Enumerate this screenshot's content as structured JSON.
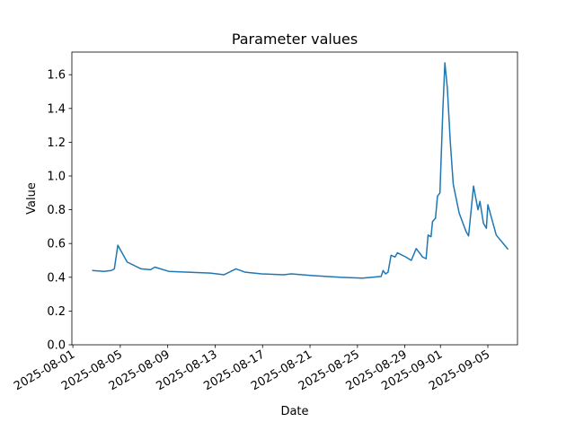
{
  "chart_data": {
    "type": "line",
    "title": "Parameter values",
    "x_label": "Date",
    "y_label": "Value",
    "x": [
      "2025-08-02T15:00",
      "2025-08-03T15:00",
      "2025-08-04T06:00",
      "2025-08-04T12:00",
      "2025-08-04T19:00",
      "2025-08-05T14:00",
      "2025-08-06T18:00",
      "2025-08-07T13:00",
      "2025-08-07T22:00",
      "2025-08-09T02:00",
      "2025-08-12T14:00",
      "2025-08-13T18:00",
      "2025-08-14T18:00",
      "2025-08-15T13:00",
      "2025-08-16T22:00",
      "2025-08-18T19:00",
      "2025-08-19T10:00",
      "2025-08-21T04:00",
      "2025-08-23T12:00",
      "2025-08-25T10:00",
      "2025-08-27T00:00",
      "2025-08-27T04:00",
      "2025-08-27T09:00",
      "2025-08-27T14:00",
      "2025-08-27T20:00",
      "2025-08-28T04:00",
      "2025-08-28T09:00",
      "2025-08-29T02:00",
      "2025-08-29T13:00",
      "2025-08-29T23:00",
      "2025-08-30T12:00",
      "2025-08-30T19:00",
      "2025-08-30T23:00",
      "2025-08-31T05:00",
      "2025-08-31T08:00",
      "2025-08-31T14:00",
      "2025-08-31T18:00",
      "2025-08-31T23:00",
      "2025-09-01T05:00",
      "2025-09-01T09:00",
      "2025-09-01T14:00",
      "2025-09-01T20:00",
      "2025-09-02T02:00",
      "2025-09-02T14:00",
      "2025-09-03T04:00",
      "2025-09-03T09:00",
      "2025-09-03T19:00",
      "2025-09-04T04:00",
      "2025-09-04T08:00",
      "2025-09-04T15:00",
      "2025-09-04T21:00",
      "2025-09-05T00:00",
      "2025-09-05T17:00",
      "2025-09-06T17:00"
    ],
    "series": [
      {
        "color": "#1f77b4",
        "values": [
          0.44,
          0.435,
          0.44,
          0.45,
          0.59,
          0.49,
          0.45,
          0.445,
          0.46,
          0.435,
          0.425,
          0.415,
          0.45,
          0.43,
          0.42,
          0.415,
          0.42,
          0.41,
          0.4,
          0.395,
          0.405,
          0.44,
          0.42,
          0.43,
          0.53,
          0.52,
          0.545,
          0.52,
          0.5,
          0.57,
          0.52,
          0.51,
          0.65,
          0.64,
          0.73,
          0.75,
          0.88,
          0.9,
          1.4,
          1.67,
          1.52,
          1.2,
          0.95,
          0.78,
          0.67,
          0.645,
          0.94,
          0.8,
          0.85,
          0.72,
          0.69,
          0.83,
          0.65,
          0.565
        ]
      }
    ],
    "xlim": [
      "2025-07-31T22:00",
      "2025-09-07T12:00"
    ],
    "xticks": [
      "2025-08-01",
      "2025-08-05",
      "2025-08-09",
      "2025-08-13",
      "2025-08-17",
      "2025-08-21",
      "2025-08-25",
      "2025-08-29",
      "2025-09-01",
      "2025-09-05"
    ],
    "ylim": [
      0,
      1.734
    ],
    "yticks": [
      {
        "value": 0,
        "label": "0.0"
      },
      {
        "value": 0.2,
        "label": "0.2"
      },
      {
        "value": 0.4,
        "label": "0.4"
      },
      {
        "value": 0.6,
        "label": "0.6"
      },
      {
        "value": 0.8,
        "label": "0.8"
      },
      {
        "value": 1,
        "label": "1.0"
      },
      {
        "value": 1.2,
        "label": "1.2"
      },
      {
        "value": 1.4,
        "label": "1.4"
      },
      {
        "value": 1.6,
        "label": "1.6"
      }
    ]
  }
}
